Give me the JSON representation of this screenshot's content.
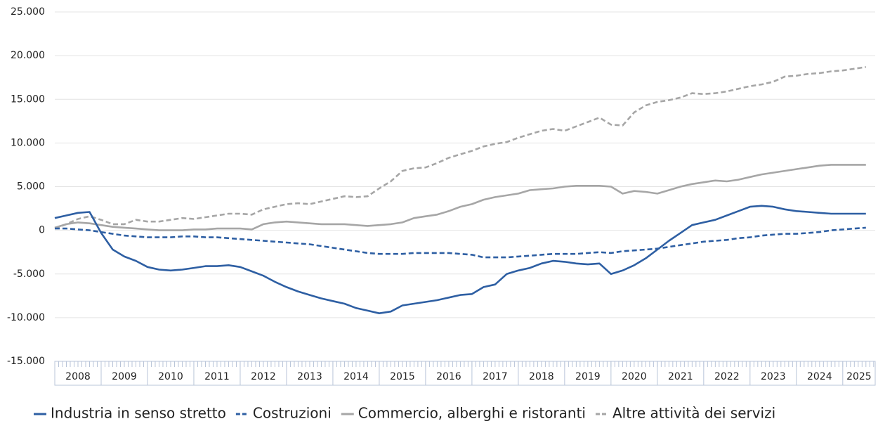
{
  "chart_data": {
    "type": "line",
    "x": [
      2008,
      2008.25,
      2008.5,
      2008.75,
      2009,
      2009.25,
      2009.5,
      2009.75,
      2010,
      2010.25,
      2010.5,
      2010.75,
      2011,
      2011.25,
      2011.5,
      2011.75,
      2012,
      2012.25,
      2012.5,
      2012.75,
      2013,
      2013.25,
      2013.5,
      2013.75,
      2014,
      2014.25,
      2014.5,
      2014.75,
      2015,
      2015.25,
      2015.5,
      2015.75,
      2016,
      2016.25,
      2016.5,
      2016.75,
      2017,
      2017.25,
      2017.5,
      2017.75,
      2018,
      2018.25,
      2018.5,
      2018.75,
      2019,
      2019.25,
      2019.5,
      2019.75,
      2020,
      2020.25,
      2020.5,
      2020.75,
      2021,
      2021.25,
      2021.5,
      2021.75,
      2022,
      2022.25,
      2022.5,
      2022.75,
      2023,
      2023.25,
      2023.5,
      2023.75,
      2024,
      2024.25,
      2024.5,
      2024.75,
      2025,
      2025.25,
      2025.5
    ],
    "series": [
      {
        "name": "Industria in senso stretto",
        "color": "#2e5fa3",
        "dashed": false,
        "values": [
          1400,
          1700,
          2000,
          2100,
          -300,
          -2200,
          -3000,
          -3500,
          -4200,
          -4500,
          -4600,
          -4500,
          -4300,
          -4100,
          -4100,
          -4000,
          -4200,
          -4700,
          -5200,
          -5900,
          -6500,
          -7000,
          -7400,
          -7800,
          -8100,
          -8400,
          -8900,
          -9200,
          -9500,
          -9300,
          -8600,
          -8400,
          -8200,
          -8000,
          -7700,
          -7400,
          -7300,
          -6500,
          -6200,
          -5000,
          -4600,
          -4300,
          -3800,
          -3500,
          -3600,
          -3800,
          -3900,
          -3800,
          -5000,
          -4600,
          -4000,
          -3200,
          -2200,
          -1200,
          -300,
          600,
          900,
          1200,
          1700,
          2200,
          2700,
          2800,
          2700,
          2400,
          2200,
          2100,
          2000,
          1900,
          1900,
          1900,
          1900
        ]
      },
      {
        "name": "Costruzioni",
        "color": "#2e5fa3",
        "dashed": true,
        "values": [
          200,
          200,
          100,
          0,
          -200,
          -400,
          -600,
          -700,
          -800,
          -800,
          -800,
          -700,
          -700,
          -800,
          -800,
          -900,
          -1000,
          -1100,
          -1200,
          -1300,
          -1400,
          -1500,
          -1600,
          -1800,
          -2000,
          -2200,
          -2400,
          -2600,
          -2700,
          -2700,
          -2700,
          -2600,
          -2600,
          -2600,
          -2600,
          -2700,
          -2800,
          -3100,
          -3100,
          -3100,
          -3000,
          -2900,
          -2800,
          -2700,
          -2700,
          -2700,
          -2600,
          -2500,
          -2600,
          -2400,
          -2300,
          -2200,
          -2100,
          -1900,
          -1700,
          -1500,
          -1300,
          -1200,
          -1100,
          -900,
          -800,
          -600,
          -500,
          -400,
          -400,
          -300,
          -200,
          0,
          100,
          200,
          300
        ]
      },
      {
        "name": "Commercio, alberghi e ristoranti",
        "color": "#a6a6a6",
        "dashed": false,
        "values": [
          300,
          700,
          900,
          800,
          600,
          400,
          300,
          200,
          100,
          0,
          0,
          0,
          100,
          100,
          200,
          200,
          200,
          100,
          700,
          900,
          1000,
          900,
          800,
          700,
          700,
          700,
          600,
          500,
          600,
          700,
          900,
          1400,
          1600,
          1800,
          2200,
          2700,
          3000,
          3500,
          3800,
          4000,
          4200,
          4600,
          4700,
          4800,
          5000,
          5100,
          5100,
          5100,
          5000,
          4200,
          4500,
          4400,
          4200,
          4600,
          5000,
          5300,
          5500,
          5700,
          5600,
          5800,
          6100,
          6400,
          6600,
          6800,
          7000,
          7200,
          7400,
          7500,
          7500,
          7500,
          7500
        ]
      },
      {
        "name": "Altre attività dei servizi",
        "color": "#a6a6a6",
        "dashed": true,
        "values": [
          200,
          700,
          1300,
          1600,
          1200,
          700,
          700,
          1200,
          1000,
          1000,
          1200,
          1400,
          1300,
          1500,
          1700,
          1900,
          1900,
          1800,
          2400,
          2700,
          3000,
          3100,
          3000,
          3300,
          3600,
          3900,
          3800,
          3900,
          4800,
          5600,
          6800,
          7100,
          7200,
          7700,
          8300,
          8700,
          9100,
          9600,
          9900,
          10100,
          10600,
          11000,
          11400,
          11600,
          11400,
          11900,
          12400,
          12900,
          12100,
          12000,
          13500,
          14300,
          14700,
          14900,
          15200,
          15700,
          15600,
          15700,
          15900,
          16200,
          16500,
          16700,
          17000,
          17600,
          17700,
          17900,
          18000,
          18200,
          18300,
          18500,
          18700
        ]
      }
    ],
    "xlim": [
      2008,
      2025.7
    ],
    "xticks": [
      {
        "value": 2008,
        "label": "2008"
      },
      {
        "value": 2009,
        "label": "2009"
      },
      {
        "value": 2010,
        "label": "2010"
      },
      {
        "value": 2011,
        "label": "2011"
      },
      {
        "value": 2012,
        "label": "2012"
      },
      {
        "value": 2013,
        "label": "2013"
      },
      {
        "value": 2014,
        "label": "2014"
      },
      {
        "value": 2015,
        "label": "2015"
      },
      {
        "value": 2016,
        "label": "2016"
      },
      {
        "value": 2017,
        "label": "2017"
      },
      {
        "value": 2018,
        "label": "2018"
      },
      {
        "value": 2019,
        "label": "2019"
      },
      {
        "value": 2020,
        "label": "2020"
      },
      {
        "value": 2021,
        "label": "2021"
      },
      {
        "value": 2022,
        "label": "2022"
      },
      {
        "value": 2023,
        "label": "2023"
      },
      {
        "value": 2024,
        "label": "2024"
      },
      {
        "value": 2025,
        "label": "2025"
      }
    ],
    "ylim": [
      -15000,
      25000
    ],
    "yticks": [
      {
        "value": -15000,
        "label": "-15.000"
      },
      {
        "value": -10000,
        "label": "-10.000"
      },
      {
        "value": -5000,
        "label": "-5.000"
      },
      0,
      {
        "value": 5000,
        "label": "5.000"
      },
      {
        "value": 10000,
        "label": "10.000"
      },
      {
        "value": 15000,
        "label": "15.000"
      },
      {
        "value": 20000,
        "label": "20.000"
      },
      {
        "value": 25000,
        "label": "25.000"
      }
    ],
    "grid": true,
    "legend": "bottom"
  }
}
